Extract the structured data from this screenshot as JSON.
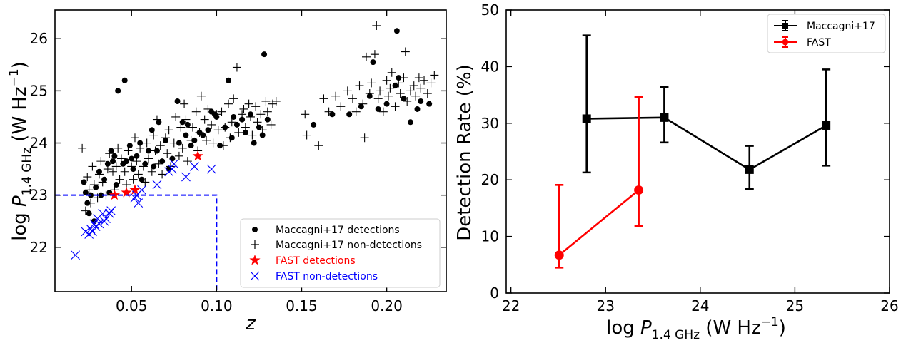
{
  "chart_data": [
    {
      "type": "scatter",
      "xlabel": "z",
      "ylabel": "log P1.4 GHz (W Hz−1)",
      "ylabel_parts": {
        "prefix": "log ",
        "var": "P",
        "sub": "1.4 GHz",
        "unit_open": " (W Hz",
        "sup": "−1",
        "unit_close": ")"
      },
      "xlim": [
        0.005,
        0.235
      ],
      "ylim": [
        21.15,
        26.55
      ],
      "xticks": [
        0.05,
        0.1,
        0.15,
        0.2
      ],
      "xtick_labels": [
        "0.05",
        "0.10",
        "0.15",
        "0.20"
      ],
      "yticks": [
        22,
        23,
        24,
        25,
        26
      ],
      "ytick_labels": [
        "22",
        "23",
        "24",
        "25",
        "26"
      ],
      "legend_position": "lower-right",
      "threshold_box": {
        "x_max": 0.1,
        "y_level": 23.0
      },
      "series": [
        {
          "name": "Maccagni+17 detections",
          "marker": "circle",
          "color": "#000000",
          "points": [
            [
              0.022,
              23.25
            ],
            [
              0.023,
              23.05
            ],
            [
              0.024,
              22.85
            ],
            [
              0.025,
              22.65
            ],
            [
              0.026,
              23.0
            ],
            [
              0.028,
              22.5
            ],
            [
              0.029,
              23.15
            ],
            [
              0.031,
              23.45
            ],
            [
              0.032,
              23.0
            ],
            [
              0.034,
              23.3
            ],
            [
              0.036,
              23.6
            ],
            [
              0.037,
              23.05
            ],
            [
              0.038,
              23.85
            ],
            [
              0.039,
              23.65
            ],
            [
              0.04,
              23.75
            ],
            [
              0.041,
              23.2
            ],
            [
              0.042,
              25.0
            ],
            [
              0.045,
              23.6
            ],
            [
              0.046,
              25.2
            ],
            [
              0.047,
              23.65
            ],
            [
              0.049,
              23.95
            ],
            [
              0.05,
              23.7
            ],
            [
              0.051,
              23.5
            ],
            [
              0.053,
              23.75
            ],
            [
              0.055,
              24.0
            ],
            [
              0.056,
              23.3
            ],
            [
              0.058,
              23.6
            ],
            [
              0.06,
              23.85
            ],
            [
              0.062,
              24.25
            ],
            [
              0.063,
              23.55
            ],
            [
              0.065,
              23.85
            ],
            [
              0.066,
              24.4
            ],
            [
              0.068,
              23.65
            ],
            [
              0.07,
              24.05
            ],
            [
              0.072,
              23.5
            ],
            [
              0.074,
              23.7
            ],
            [
              0.077,
              24.8
            ],
            [
              0.078,
              24.0
            ],
            [
              0.08,
              24.4
            ],
            [
              0.082,
              24.15
            ],
            [
              0.083,
              24.35
            ],
            [
              0.085,
              23.95
            ],
            [
              0.087,
              24.05
            ],
            [
              0.09,
              24.2
            ],
            [
              0.092,
              24.15
            ],
            [
              0.095,
              24.25
            ],
            [
              0.097,
              24.6
            ],
            [
              0.099,
              24.55
            ],
            [
              0.1,
              24.5
            ],
            [
              0.102,
              23.95
            ],
            [
              0.105,
              24.3
            ],
            [
              0.107,
              25.2
            ],
            [
              0.109,
              24.1
            ],
            [
              0.11,
              24.5
            ],
            [
              0.112,
              24.35
            ],
            [
              0.115,
              24.45
            ],
            [
              0.117,
              24.2
            ],
            [
              0.12,
              24.55
            ],
            [
              0.122,
              24.0
            ],
            [
              0.125,
              24.3
            ],
            [
              0.127,
              24.15
            ],
            [
              0.128,
              25.7
            ],
            [
              0.13,
              24.45
            ],
            [
              0.157,
              24.35
            ],
            [
              0.168,
              24.55
            ],
            [
              0.178,
              24.55
            ],
            [
              0.185,
              24.7
            ],
            [
              0.19,
              24.9
            ],
            [
              0.192,
              25.55
            ],
            [
              0.195,
              24.65
            ],
            [
              0.2,
              24.75
            ],
            [
              0.205,
              25.1
            ],
            [
              0.206,
              26.15
            ],
            [
              0.207,
              25.25
            ],
            [
              0.21,
              24.85
            ],
            [
              0.214,
              24.4
            ],
            [
              0.218,
              24.65
            ],
            [
              0.22,
              24.8
            ],
            [
              0.225,
              24.75
            ]
          ]
        },
        {
          "name": "Maccagni+17 non-detections",
          "marker": "plus",
          "color": "#000000",
          "points": [
            [
              0.021,
              23.9
            ],
            [
              0.023,
              22.7
            ],
            [
              0.024,
              23.35
            ],
            [
              0.025,
              23.1
            ],
            [
              0.026,
              22.85
            ],
            [
              0.027,
              23.55
            ],
            [
              0.028,
              23.2
            ],
            [
              0.03,
              22.95
            ],
            [
              0.031,
              23.4
            ],
            [
              0.032,
              23.65
            ],
            [
              0.033,
              23.25
            ],
            [
              0.035,
              23.0
            ],
            [
              0.036,
              23.5
            ],
            [
              0.037,
              23.8
            ],
            [
              0.039,
              23.45
            ],
            [
              0.04,
              23.1
            ],
            [
              0.041,
              23.55
            ],
            [
              0.042,
              23.9
            ],
            [
              0.043,
              23.3
            ],
            [
              0.044,
              23.7
            ],
            [
              0.046,
              23.45
            ],
            [
              0.047,
              23.2
            ],
            [
              0.048,
              23.85
            ],
            [
              0.05,
              23.55
            ],
            [
              0.051,
              23.3
            ],
            [
              0.052,
              24.1
            ],
            [
              0.053,
              23.65
            ],
            [
              0.054,
              23.4
            ],
            [
              0.055,
              23.9
            ],
            [
              0.057,
              23.55
            ],
            [
              0.058,
              23.25
            ],
            [
              0.059,
              24.0
            ],
            [
              0.06,
              23.7
            ],
            [
              0.062,
              23.45
            ],
            [
              0.063,
              24.15
            ],
            [
              0.064,
              23.85
            ],
            [
              0.065,
              24.45
            ],
            [
              0.066,
              23.6
            ],
            [
              0.067,
              23.95
            ],
            [
              0.068,
              23.4
            ],
            [
              0.07,
              24.1
            ],
            [
              0.071,
              23.8
            ],
            [
              0.072,
              24.25
            ],
            [
              0.073,
              23.55
            ],
            [
              0.075,
              24.0
            ],
            [
              0.076,
              24.5
            ],
            [
              0.078,
              23.75
            ],
            [
              0.079,
              24.3
            ],
            [
              0.08,
              23.9
            ],
            [
              0.081,
              24.75
            ],
            [
              0.082,
              24.45
            ],
            [
              0.083,
              23.65
            ],
            [
              0.085,
              24.05
            ],
            [
              0.086,
              24.3
            ],
            [
              0.088,
              24.6
            ],
            [
              0.089,
              23.85
            ],
            [
              0.09,
              24.2
            ],
            [
              0.091,
              24.9
            ],
            [
              0.093,
              24.45
            ],
            [
              0.094,
              24.05
            ],
            [
              0.095,
              24.65
            ],
            [
              0.097,
              24.35
            ],
            [
              0.098,
              24.0
            ],
            [
              0.1,
              24.55
            ],
            [
              0.101,
              24.25
            ],
            [
              0.103,
              24.6
            ],
            [
              0.104,
              23.95
            ],
            [
              0.105,
              24.3
            ],
            [
              0.107,
              24.75
            ],
            [
              0.108,
              24.1
            ],
            [
              0.109,
              24.4
            ],
            [
              0.11,
              24.85
            ],
            [
              0.112,
              25.45
            ],
            [
              0.113,
              24.2
            ],
            [
              0.115,
              24.55
            ],
            [
              0.116,
              24.65
            ],
            [
              0.117,
              24.3
            ],
            [
              0.119,
              24.75
            ],
            [
              0.12,
              24.5
            ],
            [
              0.121,
              24.15
            ],
            [
              0.123,
              24.7
            ],
            [
              0.124,
              24.4
            ],
            [
              0.126,
              24.55
            ],
            [
              0.127,
              24.25
            ],
            [
              0.129,
              24.8
            ],
            [
              0.13,
              24.6
            ],
            [
              0.132,
              24.35
            ],
            [
              0.133,
              24.75
            ],
            [
              0.135,
              24.8
            ],
            [
              0.152,
              24.55
            ],
            [
              0.153,
              24.15
            ],
            [
              0.16,
              23.95
            ],
            [
              0.163,
              24.85
            ],
            [
              0.166,
              24.6
            ],
            [
              0.17,
              24.9
            ],
            [
              0.173,
              24.7
            ],
            [
              0.177,
              25.0
            ],
            [
              0.18,
              24.85
            ],
            [
              0.182,
              24.6
            ],
            [
              0.184,
              25.1
            ],
            [
              0.186,
              24.75
            ],
            [
              0.187,
              24.1
            ],
            [
              0.188,
              25.65
            ],
            [
              0.19,
              24.95
            ],
            [
              0.191,
              25.15
            ],
            [
              0.193,
              25.7
            ],
            [
              0.194,
              26.25
            ],
            [
              0.195,
              24.85
            ],
            [
              0.196,
              25.0
            ],
            [
              0.198,
              24.6
            ],
            [
              0.2,
              25.2
            ],
            [
              0.201,
              24.9
            ],
            [
              0.202,
              25.05
            ],
            [
              0.203,
              25.35
            ],
            [
              0.205,
              24.7
            ],
            [
              0.207,
              25.15
            ],
            [
              0.208,
              24.95
            ],
            [
              0.21,
              25.25
            ],
            [
              0.211,
              25.75
            ],
            [
              0.212,
              24.8
            ],
            [
              0.214,
              25.0
            ],
            [
              0.216,
              25.1
            ],
            [
              0.217,
              24.9
            ],
            [
              0.219,
              25.25
            ],
            [
              0.22,
              25.05
            ],
            [
              0.222,
              25.2
            ],
            [
              0.224,
              24.95
            ],
            [
              0.226,
              25.15
            ],
            [
              0.228,
              25.3
            ]
          ]
        },
        {
          "name": "FAST detections",
          "marker": "star",
          "color": "#ff0000",
          "points": [
            [
              0.04,
              23.0
            ],
            [
              0.047,
              23.05
            ],
            [
              0.052,
              23.1
            ],
            [
              0.089,
              23.75
            ]
          ]
        },
        {
          "name": "FAST non-detections",
          "marker": "x",
          "color": "#0000ff",
          "points": [
            [
              0.017,
              21.85
            ],
            [
              0.023,
              22.3
            ],
            [
              0.025,
              22.25
            ],
            [
              0.026,
              22.35
            ],
            [
              0.027,
              22.3
            ],
            [
              0.028,
              22.45
            ],
            [
              0.029,
              22.4
            ],
            [
              0.03,
              22.55
            ],
            [
              0.031,
              22.45
            ],
            [
              0.033,
              22.65
            ],
            [
              0.034,
              22.5
            ],
            [
              0.035,
              22.55
            ],
            [
              0.037,
              22.65
            ],
            [
              0.038,
              22.7
            ],
            [
              0.052,
              22.95
            ],
            [
              0.053,
              23.0
            ],
            [
              0.054,
              22.85
            ],
            [
              0.056,
              23.1
            ],
            [
              0.065,
              23.2
            ],
            [
              0.072,
              23.45
            ],
            [
              0.074,
              23.5
            ],
            [
              0.075,
              23.6
            ],
            [
              0.082,
              23.35
            ],
            [
              0.087,
              23.55
            ],
            [
              0.097,
              23.5
            ]
          ]
        }
      ]
    },
    {
      "type": "line",
      "xlabel": "log P1.4 GHz (W Hz−1)",
      "xlabel_parts": {
        "prefix": "log ",
        "var": "P",
        "sub": "1.4 GHz",
        "unit_open": " (W Hz",
        "sup": "−1",
        "unit_close": ")"
      },
      "ylabel": "Detection Rate (%)",
      "xlim": [
        21.95,
        26.0
      ],
      "ylim": [
        0,
        50
      ],
      "xticks": [
        22,
        23,
        24,
        25,
        26
      ],
      "xtick_labels": [
        "22",
        "23",
        "24",
        "25",
        "26"
      ],
      "yticks": [
        0,
        10,
        20,
        30,
        40,
        50
      ],
      "ytick_labels": [
        "0",
        "10",
        "20",
        "30",
        "40",
        "50"
      ],
      "legend_position": "top-right",
      "series": [
        {
          "name": "Maccagni+17",
          "marker": "square",
          "color": "#000000",
          "x": [
            22.8,
            23.62,
            24.52,
            25.33
          ],
          "y": [
            30.8,
            31.0,
            21.8,
            29.6
          ],
          "err_low": [
            21.3,
            26.6,
            18.4,
            22.5
          ],
          "err_high": [
            45.5,
            36.4,
            26.0,
            39.5
          ]
        },
        {
          "name": "FAST",
          "marker": "circle",
          "color": "#ff0000",
          "x": [
            22.51,
            23.35
          ],
          "y": [
            6.7,
            18.2
          ],
          "err_low": [
            4.5,
            11.8
          ],
          "err_high": [
            19.1,
            34.6
          ]
        }
      ]
    }
  ]
}
